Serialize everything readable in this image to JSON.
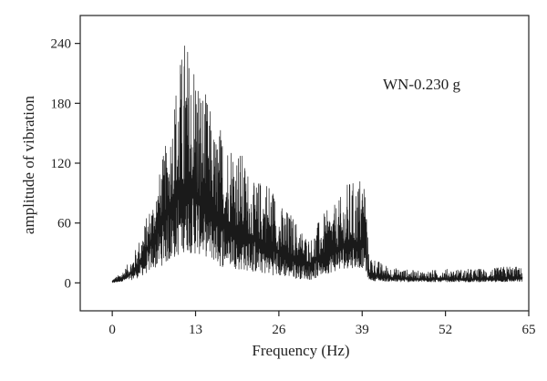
{
  "chart_data": {
    "type": "line",
    "title": "",
    "xlabel": "Frequency (Hz)",
    "ylabel": "amplitude of vibration",
    "annotation": "WN-0.230 g",
    "xlim": [
      -5,
      65
    ],
    "ylim": [
      -28,
      268
    ],
    "xticks": [
      0,
      13,
      26,
      39,
      52,
      65
    ],
    "yticks": [
      0,
      60,
      120,
      180,
      240
    ],
    "grid": false,
    "legend": "none",
    "line_color": "#1a1a1a",
    "envelope": {
      "x": [
        0.0,
        1.0,
        2.0,
        3.0,
        4.0,
        5.0,
        6.0,
        7.0,
        8.0,
        9.0,
        10.0,
        11.0,
        11.5,
        12.0,
        13.0,
        14.0,
        15.0,
        16.0,
        17.0,
        18.0,
        19.0,
        20.0,
        21.0,
        22.0,
        23.0,
        24.0,
        25.0,
        26.0,
        27.0,
        28.0,
        29.0,
        30.0,
        31.0,
        32.0,
        33.0,
        34.0,
        35.0,
        36.0,
        37.0,
        38.0,
        39.0,
        39.5,
        40.0,
        41.0,
        42.0,
        44.0,
        48.0,
        52.0,
        56.0,
        60.0,
        62.0,
        64.0
      ],
      "upper": [
        4,
        8,
        15,
        25,
        40,
        60,
        80,
        100,
        130,
        155,
        210,
        240,
        260,
        230,
        238,
        200,
        185,
        150,
        160,
        148,
        150,
        135,
        120,
        100,
        105,
        110,
        100,
        80,
        75,
        70,
        60,
        50,
        45,
        60,
        70,
        75,
        80,
        90,
        105,
        100,
        115,
        110,
        30,
        25,
        20,
        15,
        12,
        14,
        14,
        15,
        18,
        15
      ],
      "lower": [
        0,
        1,
        2,
        3,
        5,
        8,
        12,
        15,
        18,
        20,
        25,
        30,
        32,
        30,
        28,
        28,
        25,
        20,
        15,
        18,
        15,
        12,
        12,
        10,
        10,
        8,
        8,
        6,
        6,
        5,
        4,
        4,
        3,
        5,
        8,
        10,
        12,
        14,
        15,
        15,
        15,
        12,
        3,
        2,
        2,
        1,
        1,
        1,
        1,
        1,
        1,
        1
      ],
      "mean": [
        1,
        3,
        6,
        10,
        18,
        28,
        40,
        55,
        70,
        80,
        90,
        95,
        100,
        95,
        90,
        82,
        75,
        70,
        65,
        62,
        58,
        55,
        50,
        45,
        42,
        40,
        38,
        32,
        30,
        28,
        25,
        22,
        20,
        25,
        30,
        32,
        35,
        38,
        40,
        40,
        42,
        40,
        10,
        8,
        6,
        5,
        4,
        4,
        4,
        4,
        5,
        5
      ]
    }
  }
}
